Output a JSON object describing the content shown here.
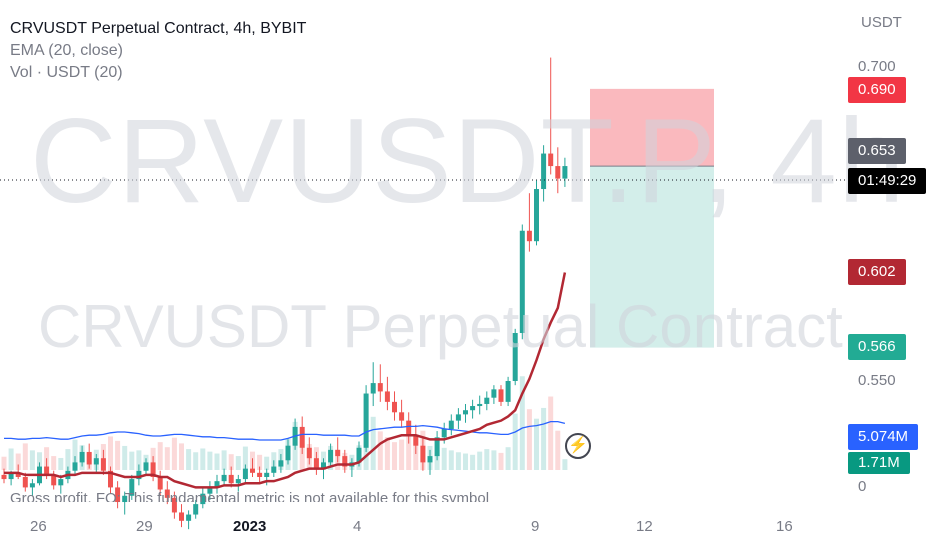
{
  "legend": {
    "title": "CRVUSDT Perpetual Contract, 4h, BYBIT",
    "ema": "EMA (20, close)",
    "vol": "Vol · USDT (20)"
  },
  "watermark": {
    "ticker": "CRVUSDT.P, 4h",
    "name": "CRVUSDT Perpetual Contract"
  },
  "fundamental_note": "Gross profit, FQ: This fundamental metric is not available for this symbol",
  "price_axis": {
    "unit": "USDT",
    "ticks": [
      "0.700",
      "0.550",
      "0"
    ]
  },
  "time_axis": {
    "ticks": [
      "26",
      "29",
      "2023",
      "4",
      "9",
      "12",
      "16"
    ]
  },
  "tags": {
    "stop": {
      "label": "0.690",
      "color": "#f23645"
    },
    "entry": {
      "label": "0.653",
      "color": "#5d606b"
    },
    "countdown": {
      "label": "01:49:29",
      "color": "#000000"
    },
    "ema": {
      "label": "0.602",
      "color": "#b22833"
    },
    "target": {
      "label": "0.566",
      "color": "#22ab94"
    },
    "vol_ma": {
      "label": "5.074M",
      "color": "#2962ff"
    },
    "vol": {
      "label": "1.71M",
      "color": "#089981"
    }
  },
  "chart_data": {
    "type": "candlestick",
    "title": "CRVUSDT Perpetual Contract, 4h, BYBIT",
    "ylabel": "USDT",
    "ylim": [
      0.47,
      0.71
    ],
    "current_price": 0.653,
    "position": {
      "side": "short",
      "entry": 0.653,
      "stop": 0.69,
      "target": 0.566
    },
    "ema_last": 0.602,
    "volume_last": "1.71M",
    "volume_ma_last": "5.074M",
    "colors": {
      "up": "#26a69a",
      "down": "#ef5350",
      "ema": "#b22833",
      "vol_ma": "#2962ff"
    },
    "candles": [
      [
        0.505,
        0.508,
        0.501,
        0.503
      ],
      [
        0.503,
        0.507,
        0.5,
        0.506
      ],
      [
        0.506,
        0.51,
        0.503,
        0.504
      ],
      [
        0.504,
        0.506,
        0.497,
        0.499
      ],
      [
        0.499,
        0.503,
        0.495,
        0.501
      ],
      [
        0.501,
        0.511,
        0.5,
        0.509
      ],
      [
        0.509,
        0.513,
        0.503,
        0.505
      ],
      [
        0.505,
        0.507,
        0.498,
        0.5
      ],
      [
        0.5,
        0.505,
        0.496,
        0.503
      ],
      [
        0.503,
        0.509,
        0.501,
        0.507
      ],
      [
        0.507,
        0.514,
        0.505,
        0.511
      ],
      [
        0.511,
        0.519,
        0.509,
        0.516
      ],
      [
        0.516,
        0.52,
        0.508,
        0.51
      ],
      [
        0.51,
        0.515,
        0.506,
        0.513
      ],
      [
        0.513,
        0.517,
        0.505,
        0.507
      ],
      [
        0.507,
        0.509,
        0.496,
        0.499
      ],
      [
        0.499,
        0.502,
        0.489,
        0.492
      ],
      [
        0.492,
        0.497,
        0.486,
        0.495
      ],
      [
        0.495,
        0.505,
        0.493,
        0.503
      ],
      [
        0.503,
        0.51,
        0.5,
        0.507
      ],
      [
        0.507,
        0.513,
        0.505,
        0.511
      ],
      [
        0.511,
        0.514,
        0.502,
        0.504
      ],
      [
        0.504,
        0.507,
        0.495,
        0.498
      ],
      [
        0.498,
        0.502,
        0.491,
        0.494
      ],
      [
        0.494,
        0.497,
        0.484,
        0.487
      ],
      [
        0.487,
        0.491,
        0.48,
        0.483
      ],
      [
        0.483,
        0.488,
        0.479,
        0.486
      ],
      [
        0.486,
        0.493,
        0.484,
        0.491
      ],
      [
        0.491,
        0.499,
        0.489,
        0.496
      ],
      [
        0.496,
        0.502,
        0.493,
        0.499
      ],
      [
        0.499,
        0.505,
        0.496,
        0.502
      ],
      [
        0.502,
        0.508,
        0.5,
        0.505
      ],
      [
        0.505,
        0.509,
        0.499,
        0.501
      ],
      [
        0.501,
        0.505,
        0.497,
        0.503
      ],
      [
        0.503,
        0.51,
        0.501,
        0.508
      ],
      [
        0.508,
        0.513,
        0.504,
        0.506
      ],
      [
        0.506,
        0.509,
        0.501,
        0.504
      ],
      [
        0.504,
        0.508,
        0.5,
        0.506
      ],
      [
        0.506,
        0.512,
        0.504,
        0.509
      ],
      [
        0.509,
        0.515,
        0.506,
        0.512
      ],
      [
        0.512,
        0.522,
        0.51,
        0.519
      ],
      [
        0.519,
        0.532,
        0.517,
        0.528
      ],
      [
        0.528,
        0.533,
        0.515,
        0.518
      ],
      [
        0.518,
        0.523,
        0.51,
        0.513
      ],
      [
        0.513,
        0.516,
        0.505,
        0.508
      ],
      [
        0.508,
        0.513,
        0.503,
        0.511
      ],
      [
        0.511,
        0.52,
        0.509,
        0.517
      ],
      [
        0.517,
        0.523,
        0.511,
        0.514
      ],
      [
        0.514,
        0.517,
        0.506,
        0.509
      ],
      [
        0.509,
        0.513,
        0.504,
        0.511
      ],
      [
        0.511,
        0.521,
        0.509,
        0.518
      ],
      [
        0.518,
        0.548,
        0.516,
        0.544
      ],
      [
        0.544,
        0.559,
        0.538,
        0.549
      ],
      [
        0.549,
        0.558,
        0.54,
        0.545
      ],
      [
        0.545,
        0.552,
        0.536,
        0.54
      ],
      [
        0.54,
        0.545,
        0.531,
        0.535
      ],
      [
        0.535,
        0.541,
        0.528,
        0.531
      ],
      [
        0.531,
        0.535,
        0.52,
        0.524
      ],
      [
        0.524,
        0.529,
        0.515,
        0.519
      ],
      [
        0.519,
        0.523,
        0.507,
        0.511
      ],
      [
        0.511,
        0.517,
        0.505,
        0.514
      ],
      [
        0.514,
        0.526,
        0.512,
        0.523
      ],
      [
        0.523,
        0.53,
        0.52,
        0.527
      ],
      [
        0.527,
        0.534,
        0.524,
        0.531
      ],
      [
        0.531,
        0.537,
        0.527,
        0.534
      ],
      [
        0.534,
        0.539,
        0.53,
        0.536
      ],
      [
        0.536,
        0.541,
        0.532,
        0.538
      ],
      [
        0.538,
        0.543,
        0.534,
        0.539
      ],
      [
        0.539,
        0.545,
        0.536,
        0.542
      ],
      [
        0.542,
        0.548,
        0.539,
        0.546
      ],
      [
        0.546,
        0.548,
        0.538,
        0.54
      ],
      [
        0.54,
        0.552,
        0.538,
        0.55
      ],
      [
        0.55,
        0.575,
        0.548,
        0.573
      ],
      [
        0.573,
        0.625,
        0.57,
        0.622
      ],
      [
        0.622,
        0.64,
        0.612,
        0.617
      ],
      [
        0.617,
        0.646,
        0.615,
        0.642
      ],
      [
        0.642,
        0.663,
        0.636,
        0.659
      ],
      [
        0.659,
        0.705,
        0.649,
        0.653
      ],
      [
        0.653,
        0.662,
        0.64,
        0.647
      ],
      [
        0.647,
        0.657,
        0.643,
        0.653
      ]
    ],
    "ema": [
      0.506,
      0.506,
      0.506,
      0.505,
      0.505,
      0.505,
      0.505,
      0.505,
      0.504,
      0.505,
      0.505,
      0.506,
      0.506,
      0.506,
      0.506,
      0.506,
      0.505,
      0.504,
      0.504,
      0.504,
      0.505,
      0.505,
      0.504,
      0.504,
      0.502,
      0.501,
      0.5,
      0.499,
      0.499,
      0.499,
      0.499,
      0.5,
      0.5,
      0.5,
      0.501,
      0.501,
      0.501,
      0.502,
      0.502,
      0.503,
      0.504,
      0.506,
      0.507,
      0.508,
      0.508,
      0.508,
      0.509,
      0.51,
      0.51,
      0.51,
      0.511,
      0.514,
      0.517,
      0.52,
      0.522,
      0.523,
      0.524,
      0.524,
      0.524,
      0.523,
      0.522,
      0.522,
      0.522,
      0.523,
      0.524,
      0.525,
      0.526,
      0.527,
      0.529,
      0.53,
      0.531,
      0.533,
      0.536,
      0.544,
      0.551,
      0.56,
      0.57,
      0.578,
      0.585,
      0.602
    ],
    "volume": [
      2.1,
      3.4,
      2.6,
      4.2,
      3.1,
      2.8,
      3.6,
      2.2,
      1.9,
      3.3,
      4.8,
      3.9,
      2.7,
      3.2,
      4.1,
      5.3,
      4.6,
      3.8,
      2.9,
      3.1,
      2.4,
      3.5,
      4.4,
      3.6,
      5.1,
      4.2,
      3.3,
      2.8,
      3.4,
      2.9,
      2.6,
      3.1,
      2.5,
      2.2,
      3.7,
      2.9,
      2.4,
      2.1,
      2.8,
      3.3,
      4.9,
      7.6,
      5.4,
      4.1,
      3.6,
      2.9,
      3.8,
      3.2,
      2.7,
      2.4,
      3.9,
      11.2,
      8.4,
      6.1,
      5.2,
      4.4,
      4.8,
      5.6,
      4.9,
      6.2,
      3.8,
      4.6,
      3.5,
      3.1,
      2.8,
      2.6,
      2.4,
      2.9,
      3.3,
      3.1,
      2.7,
      3.6,
      8.9,
      14.8,
      9.6,
      8.1,
      9.8,
      11.6,
      6.2,
      1.71
    ],
    "volume_ma": [
      3.2,
      3.2,
      3.1,
      3.1,
      3.2,
      3.2,
      3.3,
      3.2,
      3.1,
      3.1,
      3.3,
      3.5,
      3.6,
      3.6,
      3.7,
      3.9,
      4.0,
      4.0,
      3.9,
      3.8,
      3.6,
      3.5,
      3.5,
      3.6,
      3.7,
      3.7,
      3.6,
      3.5,
      3.4,
      3.4,
      3.3,
      3.3,
      3.2,
      3.1,
      3.1,
      3.1,
      3.0,
      3.0,
      3.0,
      3.0,
      3.2,
      3.5,
      3.7,
      3.7,
      3.7,
      3.6,
      3.6,
      3.6,
      3.6,
      3.5,
      3.5,
      4.0,
      4.3,
      4.4,
      4.5,
      4.6,
      4.6,
      4.7,
      4.7,
      4.8,
      4.7,
      4.6,
      4.4,
      4.3,
      4.2,
      4.1,
      4.0,
      3.9,
      3.9,
      3.8,
      3.7,
      3.7,
      4.0,
      4.5,
      4.7,
      4.8,
      5.0,
      5.3,
      5.3,
      5.074
    ]
  }
}
